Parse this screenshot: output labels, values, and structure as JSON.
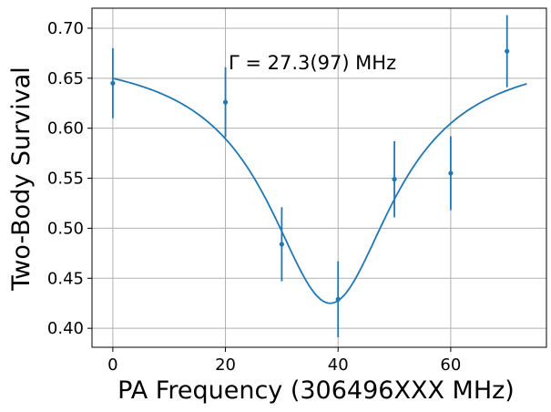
{
  "chart_data": {
    "type": "scatter",
    "title": "",
    "xlabel": "PA Frequency (306496XXX MHz)",
    "ylabel": "Two-Body Survival",
    "xlim": [
      -3.7,
      77.0
    ],
    "ylim": [
      0.381,
      0.72
    ],
    "xticks": [
      0,
      20,
      40,
      60
    ],
    "xtick_labels": [
      "0",
      "20",
      "40",
      "60"
    ],
    "yticks": [
      0.4,
      0.45,
      0.5,
      0.55,
      0.6,
      0.65,
      0.7
    ],
    "ytick_labels": [
      "0.40",
      "0.45",
      "0.50",
      "0.55",
      "0.60",
      "0.65",
      "0.70"
    ],
    "grid": true,
    "annotation": "Γ = 27.3(97) MHz",
    "series": [
      {
        "kind": "errorbar",
        "x": [
          0,
          20,
          30,
          40,
          50,
          60,
          70
        ],
        "y": [
          0.645,
          0.626,
          0.484,
          0.429,
          0.549,
          0.555,
          0.677
        ],
        "yerr": [
          0.035,
          0.035,
          0.037,
          0.038,
          0.038,
          0.037,
          0.036
        ]
      },
      {
        "kind": "fit",
        "model": "lorentzian dip",
        "center": 38.6,
        "fwhm": 27.3,
        "baseline": 0.678,
        "depth": 0.253,
        "x_range": [
          0,
          73.5
        ]
      }
    ],
    "colors": {
      "series": "#1f77b4",
      "grid": "#b0b0b0",
      "axes": "#000000"
    }
  }
}
